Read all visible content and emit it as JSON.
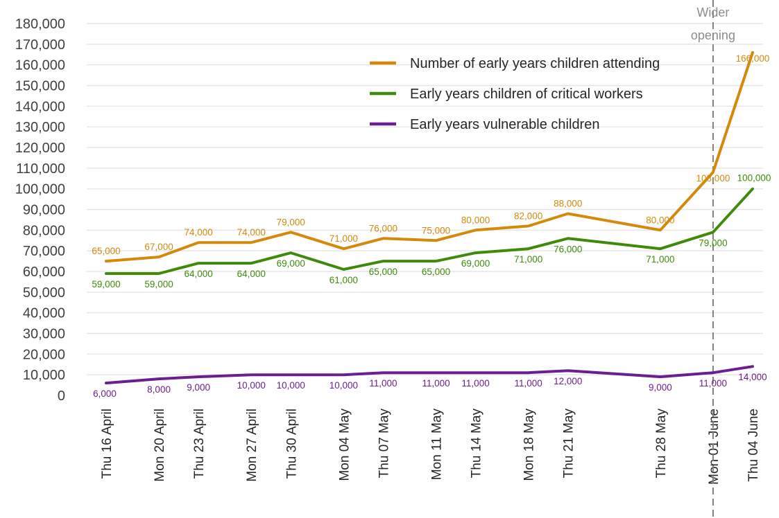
{
  "chart_data": {
    "type": "line",
    "title": "",
    "xlabel": "",
    "ylabel": "",
    "ylim": [
      0,
      180000
    ],
    "yticks": [
      0,
      10000,
      20000,
      30000,
      40000,
      50000,
      60000,
      70000,
      80000,
      90000,
      100000,
      110000,
      120000,
      130000,
      140000,
      150000,
      160000,
      170000,
      180000
    ],
    "ytick_labels": [
      "0",
      "10,000",
      "20,000",
      "30,000",
      "40,000",
      "50,000",
      "60,000",
      "70,000",
      "80,000",
      "90,000",
      "100,000",
      "110,000",
      "120,000",
      "130,000",
      "140,000",
      "150,000",
      "160,000",
      "170,000",
      "180,000"
    ],
    "x": [
      "2020-04-16",
      "2020-04-20",
      "2020-04-23",
      "2020-04-27",
      "2020-04-30",
      "2020-05-04",
      "2020-05-07",
      "2020-05-11",
      "2020-05-14",
      "2020-05-18",
      "2020-05-21",
      "2020-05-28",
      "2020-06-01",
      "2020-06-04"
    ],
    "x_labels": [
      "Thu 16 April",
      "Mon 20 April",
      "Thu 23 April",
      "Mon 27 April",
      "Thu 30 April",
      "Mon 04 May",
      "Thu 07 May",
      "Mon 11 May",
      "Thu 14 May",
      "Mon 18 May",
      "Thu 21 May",
      "Thu 28 May",
      "Mon 01 June",
      "Thu 04 June"
    ],
    "grid": true,
    "legend_position": "top-right",
    "series": [
      {
        "name": "Number of early years children attending",
        "color": "#D4890A",
        "values": [
          65000,
          67000,
          74000,
          74000,
          79000,
          71000,
          76000,
          75000,
          80000,
          82000,
          88000,
          80000,
          108000,
          166000
        ],
        "labels": [
          "65,000",
          "67,000",
          "74,000",
          "74,000",
          "79,000",
          "71,000",
          "76,000",
          "75,000",
          "80,000",
          "82,000",
          "88,000",
          "80,000",
          "108,000",
          "166,000"
        ]
      },
      {
        "name": "Early years children of critical workers",
        "color": "#3F8A0A",
        "values": [
          59000,
          59000,
          64000,
          64000,
          69000,
          61000,
          65000,
          65000,
          69000,
          71000,
          76000,
          71000,
          79000,
          100000
        ],
        "labels": [
          "59,000",
          "59,000",
          "64,000",
          "64,000",
          "69,000",
          "61,000",
          "65,000",
          "65,000",
          "69,000",
          "71,000",
          "76,000",
          "71,000",
          "79,000",
          "100,000"
        ]
      },
      {
        "name": "Early years vulnerable children",
        "color": "#6B1E91",
        "values": [
          6000,
          8000,
          9000,
          10000,
          10000,
          10000,
          11000,
          11000,
          11000,
          11000,
          12000,
          9000,
          11000,
          14000
        ],
        "labels": [
          "6,000",
          "8,000",
          "9,000",
          "10,000",
          "10,000",
          "10,000",
          "11,000",
          "11,000",
          "11,000",
          "11,000",
          "12,000",
          "9,000",
          "11,000",
          "14,000"
        ]
      }
    ],
    "annotations": [
      {
        "text_lines": [
          "Wider",
          "opening"
        ],
        "at_x": "2020-06-01",
        "line_style": "dashed",
        "color": "#808080"
      }
    ]
  }
}
